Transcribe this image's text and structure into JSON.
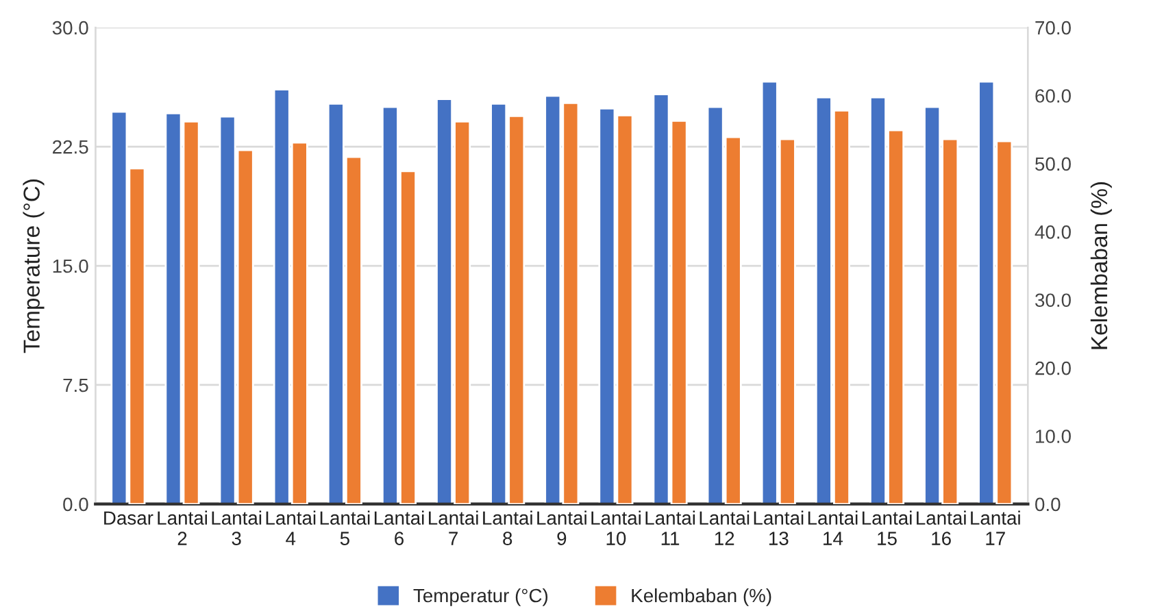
{
  "chart_data": {
    "type": "bar",
    "ylabel": "Temperature (°C)",
    "y2label": "Kelembaban (%)",
    "categories": [
      "Dasar",
      "Lantai 2",
      "Lantai 3",
      "Lantai 4",
      "Lantai 5",
      "Lantai 6",
      "Lantai 7",
      "Lantai 8",
      "Lantai 9",
      "Lantai 10",
      "Lantai 11",
      "Lantai 12",
      "Lantai 13",
      "Lantai 14",
      "Lantai 15",
      "Lantai 16",
      "Lantai 17"
    ],
    "series": [
      {
        "name": "Temperatur (°C)",
        "color": "#4472c4",
        "values": [
          24.7,
          24.6,
          24.4,
          26.1,
          25.2,
          25.0,
          25.5,
          25.2,
          25.7,
          24.9,
          25.8,
          25.0,
          26.6,
          25.6,
          25.6,
          25.0,
          26.6
        ]
      },
      {
        "name": "Kelembaban (%)",
        "color": "#ed7d31",
        "axis": "y2",
        "values": [
          49.3,
          56.2,
          52.0,
          53.1,
          51.0,
          48.9,
          56.2,
          57.0,
          58.9,
          57.1,
          56.3,
          53.9,
          53.6,
          57.8,
          54.9,
          53.6,
          53.3
        ]
      }
    ],
    "ylim": [
      0,
      30
    ],
    "yticks": [
      {
        "value": 0,
        "label": "0.0"
      },
      {
        "value": 7.5,
        "label": "7.5"
      },
      {
        "value": 15,
        "label": "15.0"
      },
      {
        "value": 22.5,
        "label": "22.5"
      },
      {
        "value": 30,
        "label": "30.0"
      }
    ],
    "y2lim": [
      0,
      70
    ],
    "y2ticks": [
      {
        "value": 0,
        "label": "0.0"
      },
      {
        "value": 10,
        "label": "10.0"
      },
      {
        "value": 20,
        "label": "20.0"
      },
      {
        "value": 30,
        "label": "30.0"
      },
      {
        "value": 40,
        "label": "40.0"
      },
      {
        "value": 50,
        "label": "50.0"
      },
      {
        "value": 60,
        "label": "60.0"
      },
      {
        "value": 70,
        "label": "70.0"
      }
    ],
    "grid": "y",
    "legend": "bottom"
  }
}
